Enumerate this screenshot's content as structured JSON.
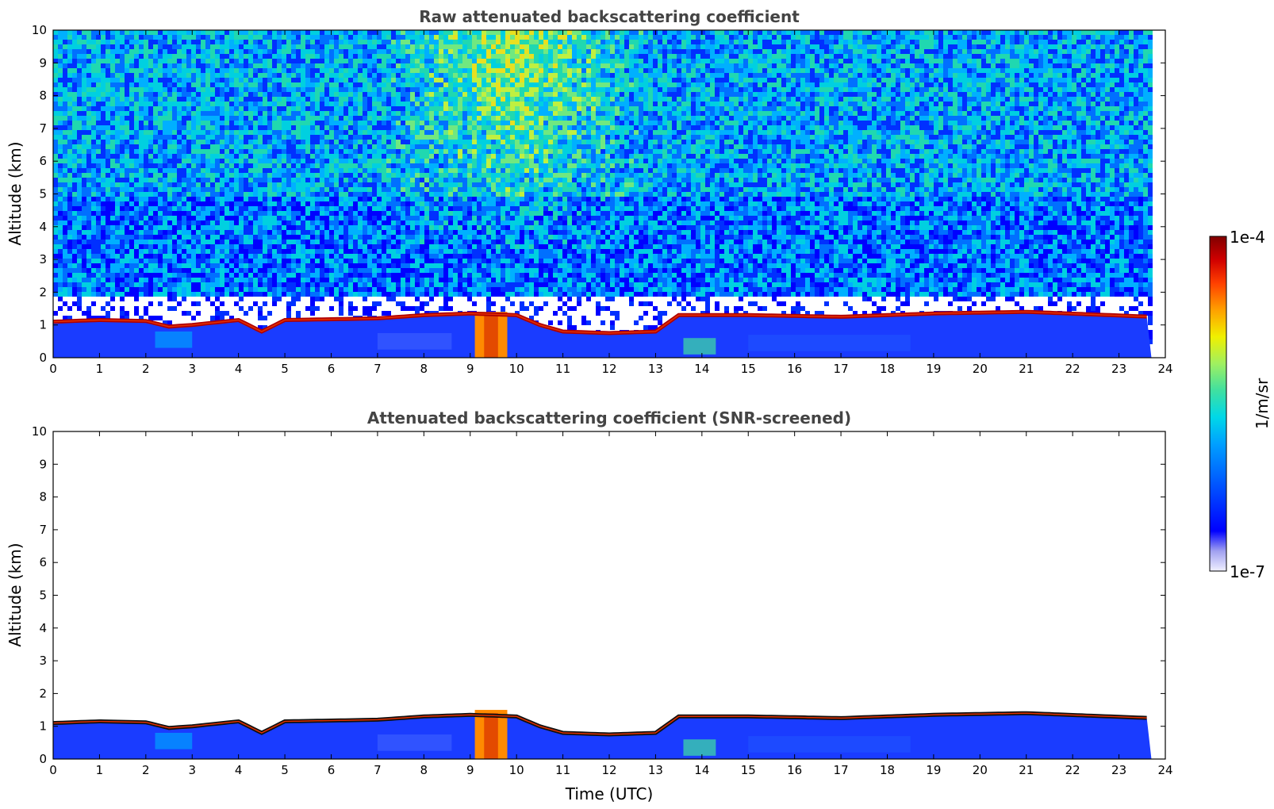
{
  "chart_data": [
    {
      "type": "heatmap",
      "title": "Raw attenuated backscattering coefficient",
      "xlabel": "",
      "ylabel": "Altitude (km)",
      "xlim": [
        0,
        24
      ],
      "ylim": [
        0,
        10
      ],
      "x_ticks": [
        "0",
        "1",
        "2",
        "3",
        "4",
        "5",
        "6",
        "7",
        "8",
        "9",
        "10",
        "11",
        "12",
        "13",
        "14",
        "15",
        "16",
        "17",
        "18",
        "19",
        "20",
        "21",
        "22",
        "23",
        "24"
      ],
      "y_ticks": [
        "0",
        "1",
        "2",
        "3",
        "4",
        "5",
        "6",
        "7",
        "8",
        "9",
        "10"
      ],
      "data_end_time": 23.7,
      "cloud_base": [
        {
          "x": 0,
          "y": 1.1
        },
        {
          "x": 1,
          "y": 1.15
        },
        {
          "x": 2,
          "y": 1.12
        },
        {
          "x": 2.5,
          "y": 0.95
        },
        {
          "x": 3,
          "y": 1.0
        },
        {
          "x": 4,
          "y": 1.15
        },
        {
          "x": 4.5,
          "y": 0.8
        },
        {
          "x": 5,
          "y": 1.15
        },
        {
          "x": 7,
          "y": 1.2
        },
        {
          "x": 8,
          "y": 1.3
        },
        {
          "x": 9,
          "y": 1.35
        },
        {
          "x": 10,
          "y": 1.3
        },
        {
          "x": 10.5,
          "y": 1.0
        },
        {
          "x": 11,
          "y": 0.8
        },
        {
          "x": 12,
          "y": 0.75
        },
        {
          "x": 13,
          "y": 0.8
        },
        {
          "x": 13.5,
          "y": 1.3
        },
        {
          "x": 15,
          "y": 1.3
        },
        {
          "x": 17,
          "y": 1.25
        },
        {
          "x": 19,
          "y": 1.35
        },
        {
          "x": 21,
          "y": 1.4
        },
        {
          "x": 23.7,
          "y": 1.25
        }
      ],
      "intense_column": {
        "x_start": 9.1,
        "x_end": 9.8,
        "y_top": 1.4
      },
      "noise": "high"
    },
    {
      "type": "heatmap",
      "title": "Attenuated backscattering coefficient (SNR-screened)",
      "xlabel": "Time (UTC)",
      "ylabel": "Altitude (km)",
      "xlim": [
        0,
        24
      ],
      "ylim": [
        0,
        10
      ],
      "x_ticks": [
        "0",
        "1",
        "2",
        "3",
        "4",
        "5",
        "6",
        "7",
        "8",
        "9",
        "10",
        "11",
        "12",
        "13",
        "14",
        "15",
        "16",
        "17",
        "18",
        "19",
        "20",
        "21",
        "22",
        "23",
        "24"
      ],
      "y_ticks": [
        "0",
        "1",
        "2",
        "3",
        "4",
        "5",
        "6",
        "7",
        "8",
        "9",
        "10"
      ],
      "data_end_time": 23.7,
      "cloud_base": [
        {
          "x": 0,
          "y": 1.1
        },
        {
          "x": 1,
          "y": 1.15
        },
        {
          "x": 2,
          "y": 1.12
        },
        {
          "x": 2.5,
          "y": 0.95
        },
        {
          "x": 3,
          "y": 1.0
        },
        {
          "x": 4,
          "y": 1.15
        },
        {
          "x": 4.5,
          "y": 0.8
        },
        {
          "x": 5,
          "y": 1.15
        },
        {
          "x": 7,
          "y": 1.2
        },
        {
          "x": 8,
          "y": 1.3
        },
        {
          "x": 9,
          "y": 1.35
        },
        {
          "x": 10,
          "y": 1.3
        },
        {
          "x": 10.5,
          "y": 1.0
        },
        {
          "x": 11,
          "y": 0.8
        },
        {
          "x": 12,
          "y": 0.75
        },
        {
          "x": 13,
          "y": 0.8
        },
        {
          "x": 13.5,
          "y": 1.3
        },
        {
          "x": 15,
          "y": 1.3
        },
        {
          "x": 17,
          "y": 1.25
        },
        {
          "x": 19,
          "y": 1.35
        },
        {
          "x": 21,
          "y": 1.4
        },
        {
          "x": 23.7,
          "y": 1.25
        }
      ],
      "intense_column": {
        "x_start": 9.1,
        "x_end": 9.8,
        "y_top": 1.5
      },
      "noise": "none"
    }
  ],
  "colorbar": {
    "label": "1/m/sr",
    "max_label": "1e-4",
    "min_label": "1e-7",
    "colors": [
      "#f0f0ff",
      "#a0a0f0",
      "#0000ff",
      "#0050ff",
      "#00a0ff",
      "#00d8e8",
      "#40e0a0",
      "#a0f060",
      "#f0f000",
      "#ffa000",
      "#ff4000",
      "#d00000",
      "#800000"
    ]
  }
}
